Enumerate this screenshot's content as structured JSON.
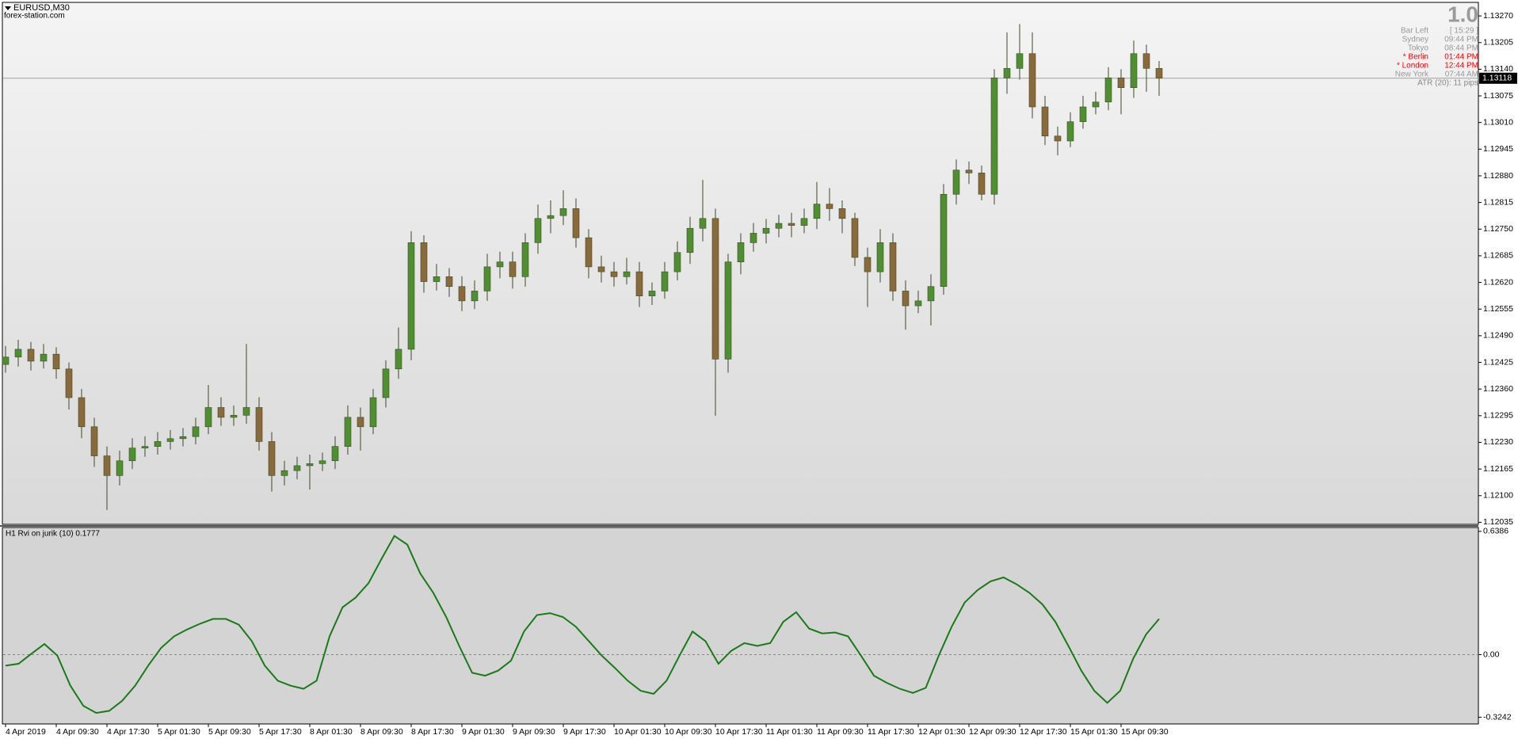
{
  "chart_data": [
    {
      "type": "candlestick",
      "title": "EURUSD,M30",
      "subtitle": "forex-station.com",
      "categories": [
        "4 Apr 2019",
        null,
        null,
        null,
        "4 Apr 09:30",
        null,
        null,
        null,
        "4 Apr 17:30",
        null,
        null,
        null,
        "5 Apr 01:30",
        null,
        null,
        null,
        "5 Apr 09:30",
        null,
        null,
        null,
        "5 Apr 17:30",
        null,
        null,
        null,
        "8 Apr 01:30",
        null,
        null,
        null,
        "8 Apr 09:30",
        null,
        null,
        null,
        "8 Apr 17:30",
        null,
        null,
        null,
        "9 Apr 01:30",
        null,
        null,
        null,
        "9 Apr 09:30",
        null,
        null,
        null,
        "9 Apr 17:30",
        null,
        null,
        null,
        "10 Apr 01:30",
        null,
        null,
        null,
        "10 Apr 09:30",
        null,
        null,
        null,
        "10 Apr 17:30",
        null,
        null,
        null,
        "11 Apr 01:30",
        null,
        null,
        null,
        "11 Apr 09:30",
        null,
        null,
        null,
        "11 Apr 17:30",
        null,
        null,
        null,
        "12 Apr 01:30",
        null,
        null,
        null,
        "12 Apr 09:30",
        null,
        null,
        null,
        "12 Apr 17:30",
        null,
        null,
        null,
        "15 Apr 01:30",
        null,
        null,
        null,
        "15 Apr 09:30",
        null,
        null,
        null
      ],
      "open": [
        1.1242,
        1.12438,
        1.12457,
        1.12428,
        1.12445,
        1.12409,
        1.12339,
        1.12268,
        1.12197,
        1.12149,
        1.12185,
        1.12216,
        1.1222,
        1.12232,
        1.12239,
        1.12244,
        1.12268,
        1.12315,
        1.12291,
        1.12296,
        1.12315,
        1.12232,
        1.12149,
        1.12161,
        1.12173,
        1.12178,
        1.12185,
        1.1222,
        1.12291,
        1.12268,
        1.12339,
        1.12409,
        1.12457,
        1.12717,
        1.12622,
        1.12634,
        1.1261,
        1.12575,
        1.12599,
        1.12658,
        1.1267,
        1.12634,
        1.12717,
        1.12776,
        1.12783,
        1.128,
        1.12729,
        1.12658,
        1.12646,
        1.12634,
        1.12646,
        1.12587,
        1.12599,
        1.12646,
        1.12693,
        1.12752,
        1.12776,
        1.12433,
        1.1267,
        1.12717,
        1.1274,
        1.12752,
        1.12764,
        1.12759,
        1.12776,
        1.12811,
        1.128,
        1.12776,
        1.12681,
        1.12646,
        1.12717,
        1.12599,
        1.12563,
        1.12575,
        1.1261,
        1.12835,
        1.12894,
        1.12887,
        1.12835,
        1.13119,
        1.13142,
        1.13178,
        1.13048,
        1.12977,
        1.12965,
        1.13012,
        1.13048,
        1.1306,
        1.13119,
        1.13095,
        1.13178,
        1.13142
      ],
      "high": [
        1.12465,
        1.1248,
        1.12475,
        1.1247,
        1.12462,
        1.12425,
        1.1236,
        1.1229,
        1.1222,
        1.1221,
        1.1224,
        1.12245,
        1.12255,
        1.1226,
        1.12265,
        1.1229,
        1.1237,
        1.1234,
        1.1232,
        1.1247,
        1.1234,
        1.12255,
        1.12185,
        1.12195,
        1.122,
        1.12205,
        1.12245,
        1.1232,
        1.12315,
        1.1236,
        1.1243,
        1.1251,
        1.12745,
        1.12735,
        1.12665,
        1.12655,
        1.12635,
        1.12625,
        1.1269,
        1.12695,
        1.12695,
        1.1274,
        1.1281,
        1.1282,
        1.12845,
        1.12825,
        1.1275,
        1.12685,
        1.1267,
        1.1268,
        1.1267,
        1.1262,
        1.1267,
        1.1272,
        1.1278,
        1.1287,
        1.128,
        1.1269,
        1.1274,
        1.12765,
        1.12775,
        1.12785,
        1.1279,
        1.128,
        1.12865,
        1.1285,
        1.1282,
        1.1279,
        1.12705,
        1.1275,
        1.1274,
        1.12625,
        1.126,
        1.1264,
        1.1286,
        1.1292,
        1.12915,
        1.12905,
        1.1314,
        1.1323,
        1.1325,
        1.1323,
        1.13075,
        1.13,
        1.13035,
        1.13075,
        1.13085,
        1.13145,
        1.1314,
        1.1321,
        1.132,
        1.1316
      ],
      "low": [
        1.124,
        1.12415,
        1.12405,
        1.1241,
        1.12385,
        1.1231,
        1.1224,
        1.1217,
        1.12065,
        1.12125,
        1.12165,
        1.12195,
        1.122,
        1.12212,
        1.1222,
        1.12225,
        1.1225,
        1.1227,
        1.1227,
        1.12275,
        1.1221,
        1.1211,
        1.12125,
        1.1214,
        1.12115,
        1.1216,
        1.12165,
        1.122,
        1.1221,
        1.1225,
        1.12315,
        1.12385,
        1.1243,
        1.12595,
        1.126,
        1.12585,
        1.1255,
        1.12555,
        1.12575,
        1.1263,
        1.12605,
        1.1261,
        1.1269,
        1.1274,
        1.1276,
        1.12705,
        1.1263,
        1.1262,
        1.1261,
        1.12615,
        1.1256,
        1.12565,
        1.1258,
        1.12625,
        1.12665,
        1.1272,
        1.12295,
        1.124,
        1.1264,
        1.12695,
        1.12715,
        1.1273,
        1.1273,
        1.1274,
        1.1275,
        1.1277,
        1.1274,
        1.1266,
        1.1256,
        1.1262,
        1.12575,
        1.12505,
        1.12545,
        1.12515,
        1.1259,
        1.1281,
        1.1286,
        1.1282,
        1.1281,
        1.1308,
        1.13115,
        1.1302,
        1.12955,
        1.1293,
        1.1295,
        1.12995,
        1.1303,
        1.1304,
        1.1303,
        1.1307,
        1.13085,
        1.13075
      ],
      "close": [
        1.12438,
        1.12457,
        1.12428,
        1.12445,
        1.12409,
        1.12339,
        1.12268,
        1.12197,
        1.12149,
        1.12185,
        1.12216,
        1.1222,
        1.12232,
        1.12239,
        1.12244,
        1.12268,
        1.12315,
        1.12291,
        1.12296,
        1.12315,
        1.12232,
        1.12149,
        1.12161,
        1.12173,
        1.12178,
        1.12185,
        1.1222,
        1.12291,
        1.12268,
        1.12339,
        1.12409,
        1.12457,
        1.12717,
        1.12622,
        1.12634,
        1.1261,
        1.12575,
        1.12599,
        1.12658,
        1.1267,
        1.12634,
        1.12717,
        1.12776,
        1.12783,
        1.128,
        1.12729,
        1.12658,
        1.12646,
        1.12634,
        1.12646,
        1.12587,
        1.12599,
        1.12646,
        1.12693,
        1.12752,
        1.12776,
        1.12433,
        1.1267,
        1.12717,
        1.1274,
        1.12752,
        1.12764,
        1.12759,
        1.12776,
        1.12811,
        1.128,
        1.12776,
        1.12681,
        1.12646,
        1.12717,
        1.12599,
        1.12563,
        1.12575,
        1.1261,
        1.12835,
        1.12894,
        1.12887,
        1.12835,
        1.13119,
        1.13142,
        1.13178,
        1.13048,
        1.12977,
        1.12965,
        1.13012,
        1.13048,
        1.1306,
        1.13119,
        1.13095,
        1.13178,
        1.13142,
        1.13118
      ],
      "up_color": "#4f8f2f",
      "down_color": "#8a6a3a",
      "wick_color": "#3d4a2a",
      "last_price": 1.13118,
      "ylim": [
        1.1203,
        1.13303
      ],
      "yticks": [
        {
          "value": 1.1327,
          "label": "1.13270"
        },
        1.13205,
        {
          "value": 1.1314,
          "label": "1.13140"
        },
        1.13075,
        {
          "value": 1.1301,
          "label": "1.13010"
        },
        1.12945,
        {
          "value": 1.1288,
          "label": "1.12880"
        },
        1.12815,
        {
          "value": 1.1275,
          "label": "1.12750"
        },
        1.12685,
        {
          "value": 1.1262,
          "label": "1.12620"
        },
        1.12555,
        {
          "value": 1.1249,
          "label": "1.12490"
        },
        1.12425,
        {
          "value": 1.1236,
          "label": "1.12360"
        },
        1.12295,
        {
          "value": 1.1223,
          "label": "1.12230"
        },
        1.12165,
        {
          "value": 1.121,
          "label": "1.12100"
        },
        1.12035
      ]
    },
    {
      "type": "line",
      "title": "H1 Rvi on jurik (10) 0.1777",
      "color": "#1a7a1a",
      "values": [
        -0.057,
        -0.047,
        0.005,
        0.055,
        -0.005,
        -0.161,
        -0.265,
        -0.302,
        -0.291,
        -0.239,
        -0.161,
        -0.057,
        0.035,
        0.095,
        0.13,
        0.16,
        0.185,
        0.185,
        0.155,
        0.07,
        -0.057,
        -0.135,
        -0.161,
        -0.177,
        -0.135,
        0.095,
        0.245,
        0.295,
        0.37,
        0.495,
        0.615,
        0.57,
        0.42,
        0.32,
        0.195,
        0.045,
        -0.094,
        -0.109,
        -0.083,
        -0.031,
        0.12,
        0.205,
        0.215,
        0.195,
        0.145,
        0.07,
        -0.005,
        -0.068,
        -0.135,
        -0.187,
        -0.203,
        -0.135,
        -0.005,
        0.12,
        0.07,
        -0.047,
        0.02,
        0.06,
        0.045,
        0.06,
        0.17,
        0.22,
        0.135,
        0.11,
        0.115,
        0.095,
        -0.005,
        -0.109,
        -0.146,
        -0.177,
        -0.198,
        -0.172,
        -0.005,
        0.145,
        0.27,
        0.335,
        0.38,
        0.4,
        0.365,
        0.32,
        0.26,
        0.17,
        0.045,
        -0.083,
        -0.187,
        -0.25,
        -0.187,
        -0.021,
        0.105,
        0.185
      ],
      "ylim": [
        -0.359,
        0.6586
      ],
      "yticks": [
        0.6386,
        {
          "value": 0,
          "label": "0.00"
        },
        -0.3242
      ]
    }
  ],
  "info": {
    "big": "1.0",
    "highlight_color": "#ff0000",
    "rows": [
      {
        "label": "Bar Left",
        "value": "[ 15:29 ]"
      },
      {
        "label": "Sydney",
        "value": "09:44 PM"
      },
      {
        "label": "Tokyo",
        "value": "08:44 PM"
      },
      {
        "label": "* Berlin",
        "value": "01:44 PM",
        "highlight": true
      },
      {
        "label": "* London",
        "value": "12:44 PM",
        "highlight": true
      },
      {
        "label": "New York",
        "value": "07:44 AM"
      }
    ],
    "atr": "ATR (20): 11 pips"
  }
}
